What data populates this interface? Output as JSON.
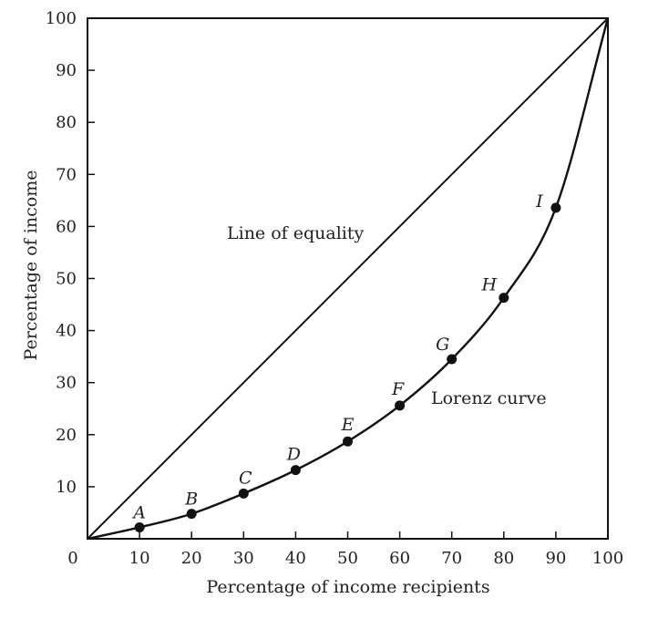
{
  "chart_data": {
    "type": "line",
    "xlabel": "Percentage of income recipients",
    "ylabel": "Percentage of income",
    "xlim": [
      0,
      100
    ],
    "ylim": [
      0,
      100
    ],
    "x_ticks": [
      "0",
      "10",
      "20",
      "30",
      "40",
      "50",
      "60",
      "70",
      "80",
      "90",
      "100"
    ],
    "y_ticks": [
      "10",
      "20",
      "30",
      "40",
      "50",
      "60",
      "70",
      "80",
      "90",
      "100"
    ],
    "grid": false,
    "series": [
      {
        "name": "Line of equality",
        "x": [
          0,
          100
        ],
        "y": [
          0,
          100
        ]
      },
      {
        "name": "Lorenz curve",
        "x": [
          0,
          10,
          20,
          30,
          40,
          50,
          60,
          70,
          80,
          90,
          100
        ],
        "y": [
          0,
          2.2,
          4.8,
          8.7,
          13.2,
          18.7,
          25.6,
          34.5,
          46.3,
          63.6,
          100
        ]
      }
    ],
    "points": [
      {
        "label": "A",
        "x": 10,
        "y": 2.2
      },
      {
        "label": "B",
        "x": 20,
        "y": 4.8
      },
      {
        "label": "C",
        "x": 30,
        "y": 8.7
      },
      {
        "label": "D",
        "x": 40,
        "y": 13.2
      },
      {
        "label": "E",
        "x": 50,
        "y": 18.7
      },
      {
        "label": "F",
        "x": 60,
        "y": 25.6
      },
      {
        "label": "G",
        "x": 70,
        "y": 34.5
      },
      {
        "label": "H",
        "x": 80,
        "y": 46.3
      },
      {
        "label": "I",
        "x": 90,
        "y": 63.6
      }
    ],
    "annotations": {
      "equality": "Line of equality",
      "lorenz": "Lorenz curve"
    }
  }
}
